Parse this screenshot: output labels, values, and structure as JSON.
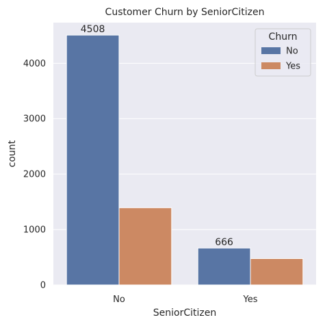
{
  "chart_data": {
    "type": "bar",
    "title": "Customer Churn by SeniorCitizen",
    "xlabel": "SeniorCitizen",
    "ylabel": "count",
    "categories": [
      "No",
      "Yes"
    ],
    "series": [
      {
        "name": "No",
        "values": [
          4508,
          666
        ],
        "color": "#5875a4"
      },
      {
        "name": "Yes",
        "values": [
          1393,
          476
        ],
        "color": "#cc8963"
      }
    ],
    "data_labels": [
      {
        "series": 0,
        "category": 0,
        "text": "4508"
      },
      {
        "series": 0,
        "category": 1,
        "text": "666"
      }
    ],
    "ylim": [
      0,
      4733
    ],
    "yticks": [
      0,
      1000,
      2000,
      3000,
      4000
    ],
    "grid": true,
    "legend": {
      "title": "Churn",
      "placement": "top-right"
    },
    "background": "#eaeaf2"
  }
}
